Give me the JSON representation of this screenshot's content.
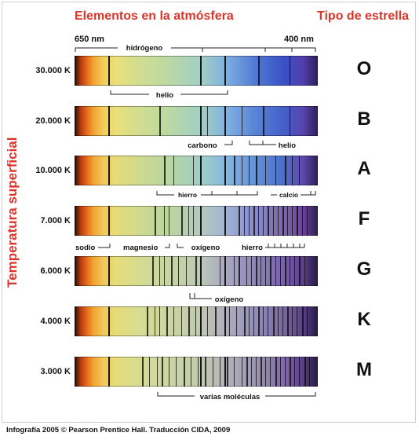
{
  "header": {
    "elements_title": "Elementos en la atmósfera",
    "star_type_title": "Tipo de estrella"
  },
  "axis": {
    "y_label": "Temperatura superficial",
    "wavelength_left": "650 nm",
    "wavelength_right": "400 nm"
  },
  "spectra": [
    {
      "temperature": "30.000 K",
      "class": "O"
    },
    {
      "temperature": "20.000 K",
      "class": "B"
    },
    {
      "temperature": "10.000 K",
      "class": "A"
    },
    {
      "temperature": "7.000 K",
      "class": "F"
    },
    {
      "temperature": "6.000 K",
      "class": "G"
    },
    {
      "temperature": "4.000 K",
      "class": "K"
    },
    {
      "temperature": "3.000 K",
      "class": "M"
    }
  ],
  "element_labels": {
    "hidrogeno": "hidrógeno",
    "helio_o": "helio",
    "carbono": "carbono",
    "helio_b": "helio",
    "hierro_a": "hierro",
    "calcio": "calcio",
    "sodio": "sodio",
    "magnesio": "magnesio",
    "oxigeno_f": "oxígeno",
    "hierro_f": "hierro",
    "oxigeno_g": "oxígeno",
    "moleculas": "varias moléculas"
  },
  "footer": "Infografía 2005 © Pearson Prentice Hall. Traducción CIDA, 2009"
}
